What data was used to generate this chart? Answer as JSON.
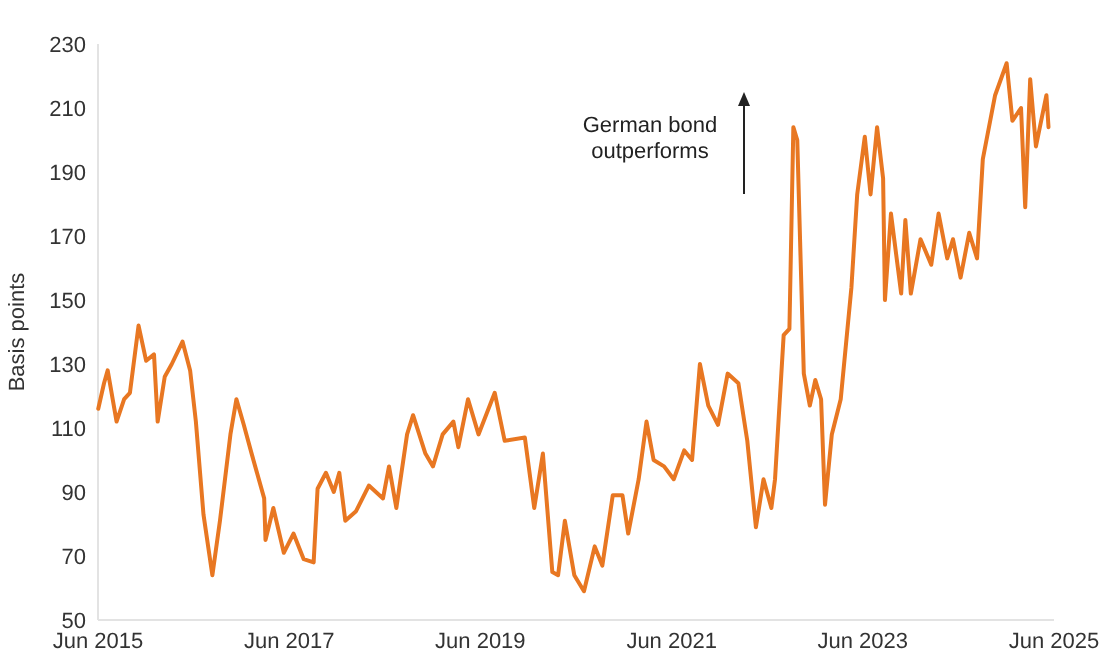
{
  "chart_data": {
    "type": "line",
    "ylabel": "Basis points",
    "annotations": [
      "German bond outperforms"
    ],
    "xlim": [
      "2015-06-01",
      "2025-06-01"
    ],
    "xticks": [
      {
        "value": "2015-06-01",
        "label": "Jun 2015"
      },
      {
        "value": "2017-06-01",
        "label": "Jun 2017"
      },
      {
        "value": "2019-06-01",
        "label": "Jun 2019"
      },
      {
        "value": "2021-06-01",
        "label": "Jun 2021"
      },
      {
        "value": "2023-06-01",
        "label": "Jun 2023"
      },
      {
        "value": "2025-06-01",
        "label": "Jun 2025"
      }
    ],
    "ylim": [
      50,
      230
    ],
    "yticks": [
      50,
      70,
      90,
      110,
      130,
      150,
      170,
      190,
      210,
      230
    ],
    "grid": false,
    "marker": "none",
    "line_style": "solid",
    "series": [
      {
        "color": "#e87722",
        "x": [
          "2015-06-02",
          "2015-06-24",
          "2015-07-08",
          "2015-08-11",
          "2015-09-09",
          "2015-10-01",
          "2015-11-03",
          "2015-12-02",
          "2016-01-01",
          "2016-01-15",
          "2016-02-11",
          "2016-03-09",
          "2016-04-19",
          "2016-05-18",
          "2016-06-09",
          "2016-07-08",
          "2016-08-11",
          "2016-09-09",
          "2016-10-19",
          "2016-11-11",
          "2016-12-09",
          "2017-01-08",
          "2017-02-25",
          "2017-03-02",
          "2017-04-01",
          "2017-05-11",
          "2017-06-17",
          "2017-07-26",
          "2017-09-02",
          "2017-09-17",
          "2017-10-19",
          "2017-11-18",
          "2017-12-09",
          "2018-01-01",
          "2018-02-11",
          "2018-04-01",
          "2018-05-25",
          "2018-06-17",
          "2018-07-15",
          "2018-08-25",
          "2018-09-17",
          "2018-11-03",
          "2018-12-02",
          "2019-01-08",
          "2019-02-18",
          "2019-03-09",
          "2019-04-15",
          "2019-05-25",
          "2019-07-26",
          "2019-09-02",
          "2019-11-18",
          "2019-12-24",
          "2020-01-26",
          "2020-03-02",
          "2020-03-24",
          "2020-04-19",
          "2020-05-25",
          "2020-07-01",
          "2020-08-11",
          "2020-09-09",
          "2020-10-19",
          "2020-11-25",
          "2020-12-17",
          "2021-01-26",
          "2021-02-25",
          "2021-03-24",
          "2021-05-03",
          "2021-06-09",
          "2021-07-19",
          "2021-08-18",
          "2021-09-17",
          "2021-10-19",
          "2021-11-25",
          "2022-01-01",
          "2022-02-11",
          "2022-03-17",
          "2022-04-19",
          "2022-05-18",
          "2022-06-17",
          "2022-07-01",
          "2022-08-03",
          "2022-08-25",
          "2022-09-09",
          "2022-09-24",
          "2022-10-19",
          "2022-11-11",
          "2022-12-02",
          "2022-12-24",
          "2023-01-08",
          "2023-02-03",
          "2023-03-09",
          "2023-04-19",
          "2023-05-11",
          "2023-06-09",
          "2023-07-01",
          "2023-07-26",
          "2023-08-18",
          "2023-08-25",
          "2023-09-17",
          "2023-10-26",
          "2023-11-11",
          "2023-12-02",
          "2024-01-08",
          "2024-02-18",
          "2024-03-17",
          "2024-04-19",
          "2024-05-11",
          "2024-06-09",
          "2024-07-12",
          "2024-08-11",
          "2024-09-02",
          "2024-10-19",
          "2024-12-02",
          "2024-12-24",
          "2025-01-26",
          "2025-02-11",
          "2025-03-02",
          "2025-03-24",
          "2025-05-03",
          "2025-05-11"
        ],
        "values": [
          116,
          124,
          128,
          112,
          119,
          121,
          142,
          131,
          133,
          112,
          126,
          130,
          137,
          128,
          112,
          83,
          64,
          81,
          108,
          119,
          111,
          102,
          88,
          75,
          85,
          71,
          77,
          69,
          68,
          91,
          96,
          90,
          96,
          81,
          84,
          92,
          88,
          98,
          85,
          108,
          114,
          102,
          98,
          108,
          112,
          104,
          119,
          108,
          121,
          106,
          107,
          85,
          102,
          65,
          64,
          81,
          64,
          59,
          73,
          67,
          89,
          89,
          77,
          94,
          112,
          100,
          98,
          94,
          103,
          100,
          130,
          117,
          111,
          127,
          124,
          106,
          79,
          94,
          85,
          94,
          139,
          141,
          204,
          200,
          127,
          117,
          125,
          119,
          86,
          108,
          119,
          154,
          183,
          201,
          183,
          204,
          188,
          150,
          177,
          152,
          175,
          152,
          169,
          161,
          177,
          163,
          169,
          157,
          171,
          163,
          194,
          214,
          224,
          206,
          210,
          179,
          219,
          198,
          214,
          204
        ]
      }
    ]
  }
}
